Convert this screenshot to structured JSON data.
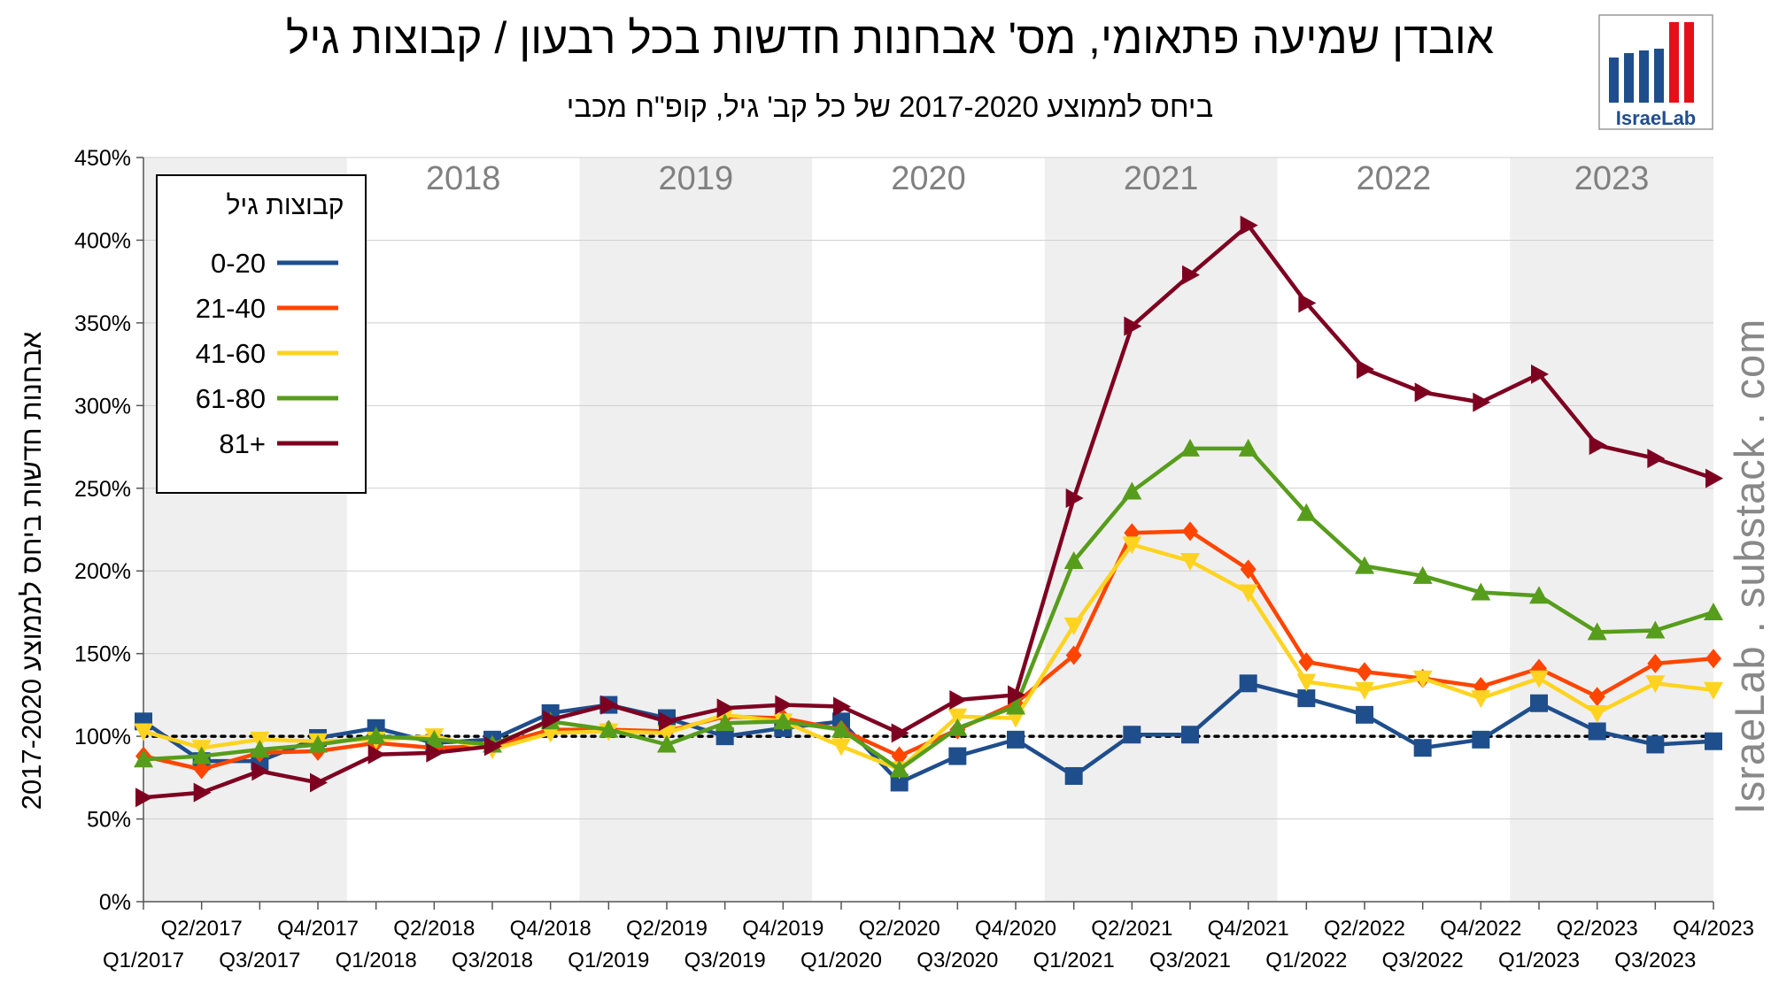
{
  "title": "אובדן שמיעה פתאומי, מס' אבחנות חדשות בכל רבעון / קבוצות גיל",
  "subtitle": "ביחס לממוצע 2017-2020 של כל קב' גיל, קופ\"ח מכבי",
  "watermark": "IsraeLab . substack . com",
  "logo_text": "IsraeLab",
  "colors": {
    "band": "#efefef",
    "grid": "#cfcfcf",
    "axis": "#555555",
    "year_label": "#808080",
    "logo_blue": "#1f4e8c",
    "logo_red": "#e3101a"
  },
  "chart_data": {
    "type": "line",
    "ylabel": "אבחנות חדשות ביחס לממוצע 2017-2020",
    "xlabel": "",
    "ylim": [
      0,
      450
    ],
    "y_ticks": [
      "0%",
      "50%",
      "100%",
      "150%",
      "200%",
      "250%",
      "300%",
      "350%",
      "400%",
      "450%"
    ],
    "grid": true,
    "reference_line": 100,
    "year_labels": [
      "2018",
      "2019",
      "2020",
      "2021",
      "2022",
      "2023"
    ],
    "shaded_years": [
      "2017",
      "2019",
      "2021",
      "2023"
    ],
    "categories": [
      "Q1/2017",
      "Q2/2017",
      "Q3/2017",
      "Q4/2017",
      "Q1/2018",
      "Q2/2018",
      "Q3/2018",
      "Q4/2018",
      "Q1/2019",
      "Q2/2019",
      "Q3/2019",
      "Q4/2019",
      "Q1/2020",
      "Q2/2020",
      "Q3/2020",
      "Q4/2020",
      "Q1/2021",
      "Q2/2021",
      "Q3/2021",
      "Q4/2021",
      "Q1/2022",
      "Q2/2022",
      "Q3/2022",
      "Q4/2022",
      "Q1/2023",
      "Q2/2023",
      "Q3/2023",
      "Q4/2023"
    ],
    "legend": {
      "title": "קבוצות גיל",
      "placement": "top-left"
    },
    "series": [
      {
        "name": "0-20",
        "color": "#1f4e8c",
        "marker": "square",
        "values": [
          109,
          85,
          85,
          99,
          105,
          96,
          98,
          114,
          119,
          111,
          100,
          105,
          109,
          72,
          88,
          98,
          76,
          101,
          101,
          132,
          123,
          113,
          93,
          98,
          120,
          103,
          95,
          97
        ]
      },
      {
        "name": "21-40",
        "color": "#ff4500",
        "marker": "diamond",
        "values": [
          88,
          80,
          90,
          91,
          96,
          93,
          94,
          104,
          104,
          103,
          112,
          111,
          104,
          88,
          104,
          120,
          149,
          223,
          224,
          201,
          145,
          139,
          135,
          130,
          141,
          124,
          144,
          147
        ]
      },
      {
        "name": "41-60",
        "color": "#ffd320",
        "marker": "triangle-down",
        "values": [
          103,
          93,
          98,
          97,
          98,
          100,
          92,
          102,
          103,
          102,
          113,
          109,
          94,
          80,
          112,
          111,
          167,
          216,
          206,
          187,
          133,
          128,
          135,
          123,
          135,
          114,
          132,
          128
        ]
      },
      {
        "name": "61-80",
        "color": "#579d1c",
        "marker": "triangle-up",
        "values": [
          86,
          88,
          92,
          95,
          100,
          98,
          95,
          109,
          104,
          95,
          108,
          109,
          104,
          80,
          105,
          118,
          206,
          248,
          274,
          274,
          235,
          203,
          197,
          187,
          185,
          163,
          164,
          175
        ]
      },
      {
        "name": "81+",
        "color": "#7e0021",
        "marker": "triangle-right",
        "values": [
          63,
          66,
          79,
          72,
          89,
          90,
          94,
          110,
          119,
          109,
          117,
          119,
          118,
          102,
          122,
          125,
          244,
          348,
          379,
          409,
          362,
          322,
          308,
          302,
          319,
          276,
          268,
          256
        ]
      }
    ]
  }
}
